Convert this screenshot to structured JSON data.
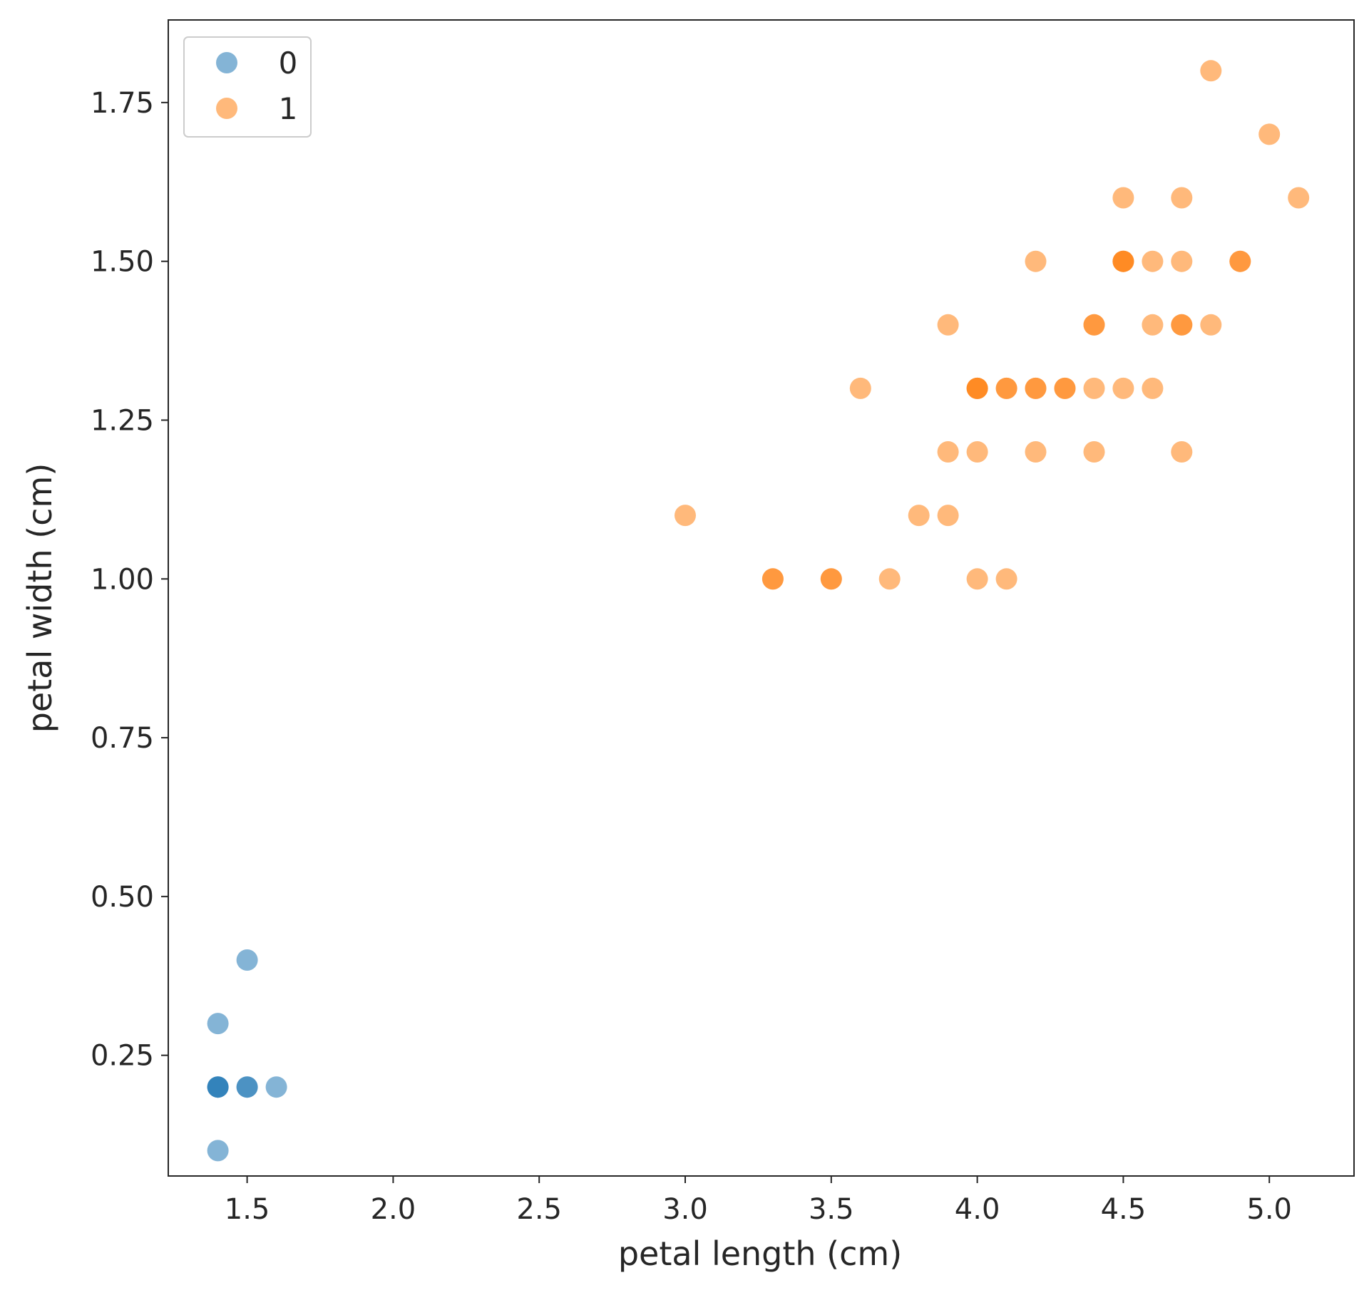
{
  "chart_data": {
    "type": "scatter",
    "title": "",
    "xlabel": "petal length (cm)",
    "ylabel": "petal width (cm)",
    "xlim": [
      1.23,
      5.29
    ],
    "ylim": [
      0.06,
      1.88
    ],
    "xticks": [
      1.5,
      2.0,
      2.5,
      3.0,
      3.5,
      4.0,
      4.5,
      5.0
    ],
    "yticks": [
      0.25,
      0.5,
      0.75,
      1.0,
      1.25,
      1.5,
      1.75
    ],
    "xtick_labels": [
      "1.5",
      "2.0",
      "2.5",
      "3.0",
      "3.5",
      "4.0",
      "4.5",
      "5.0"
    ],
    "ytick_labels": [
      "0.25",
      "0.50",
      "0.75",
      "1.00",
      "1.25",
      "1.50",
      "1.75"
    ],
    "grid": false,
    "legend": {
      "placement": "top-left"
    },
    "series": [
      {
        "name": "0",
        "color": "#1f77b4",
        "alpha": 0.55,
        "points": [
          [
            1.4,
            0.2
          ],
          [
            1.4,
            0.2
          ],
          [
            1.4,
            0.2
          ],
          [
            1.5,
            0.2
          ],
          [
            1.5,
            0.2
          ],
          [
            1.6,
            0.2
          ],
          [
            1.4,
            0.3
          ],
          [
            1.5,
            0.4
          ],
          [
            1.4,
            0.1
          ]
        ]
      },
      {
        "name": "1",
        "color": "#ff7f0e",
        "alpha": 0.55,
        "points": [
          [
            4.8,
            1.8
          ],
          [
            5.0,
            1.7
          ],
          [
            4.5,
            1.6
          ],
          [
            4.7,
            1.6
          ],
          [
            5.1,
            1.6
          ],
          [
            4.2,
            1.5
          ],
          [
            4.5,
            1.5
          ],
          [
            4.5,
            1.5
          ],
          [
            4.5,
            1.5
          ],
          [
            4.6,
            1.5
          ],
          [
            4.7,
            1.5
          ],
          [
            4.9,
            1.5
          ],
          [
            4.9,
            1.5
          ],
          [
            3.9,
            1.4
          ],
          [
            4.4,
            1.4
          ],
          [
            4.4,
            1.4
          ],
          [
            4.6,
            1.4
          ],
          [
            4.7,
            1.4
          ],
          [
            4.7,
            1.4
          ],
          [
            4.8,
            1.4
          ],
          [
            3.6,
            1.3
          ],
          [
            4.0,
            1.3
          ],
          [
            4.0,
            1.3
          ],
          [
            4.0,
            1.3
          ],
          [
            4.1,
            1.3
          ],
          [
            4.1,
            1.3
          ],
          [
            4.2,
            1.3
          ],
          [
            4.2,
            1.3
          ],
          [
            4.3,
            1.3
          ],
          [
            4.3,
            1.3
          ],
          [
            4.4,
            1.3
          ],
          [
            4.5,
            1.3
          ],
          [
            4.6,
            1.3
          ],
          [
            3.9,
            1.2
          ],
          [
            4.0,
            1.2
          ],
          [
            4.2,
            1.2
          ],
          [
            4.4,
            1.2
          ],
          [
            4.7,
            1.2
          ],
          [
            3.0,
            1.1
          ],
          [
            3.8,
            1.1
          ],
          [
            3.9,
            1.1
          ],
          [
            3.3,
            1.0
          ],
          [
            3.3,
            1.0
          ],
          [
            3.5,
            1.0
          ],
          [
            3.5,
            1.0
          ],
          [
            3.7,
            1.0
          ],
          [
            4.0,
            1.0
          ],
          [
            4.1,
            1.0
          ]
        ]
      }
    ]
  }
}
